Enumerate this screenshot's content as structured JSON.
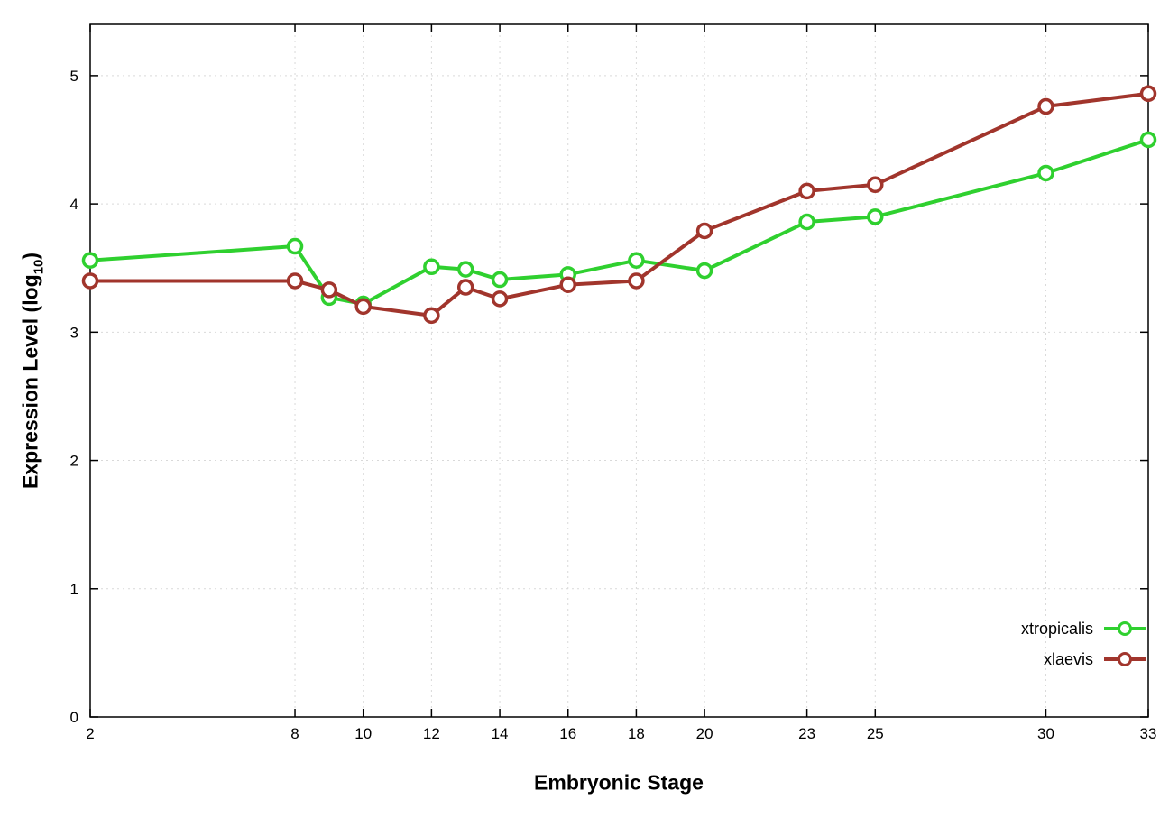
{
  "labels": {
    "x": "Embryonic Stage",
    "y_prefix": "Expression Level (log",
    "y_sub": "10",
    "y_suffix": ")"
  },
  "chart_data": {
    "type": "line",
    "title": "",
    "xlabel": "Embryonic Stage",
    "ylabel": "Expression Level (log10)",
    "xlim": [
      2,
      33
    ],
    "ylim": [
      0,
      5.4
    ],
    "x_ticks": [
      2,
      8,
      10,
      12,
      14,
      16,
      18,
      20,
      23,
      25,
      30,
      33
    ],
    "y_ticks": [
      0,
      1,
      2,
      3,
      4,
      5
    ],
    "grid": true,
    "legend_position": "inside-bottom-right",
    "series": [
      {
        "name": "xtropicalis",
        "color": "#2fd02f",
        "points": [
          [
            2,
            3.56
          ],
          [
            8,
            3.67
          ],
          [
            9,
            3.27
          ],
          [
            10,
            3.22
          ],
          [
            12,
            3.51
          ],
          [
            13,
            3.49
          ],
          [
            14,
            3.41
          ],
          [
            16,
            3.45
          ],
          [
            18,
            3.56
          ],
          [
            20,
            3.48
          ],
          [
            23,
            3.86
          ],
          [
            25,
            3.9
          ],
          [
            30,
            4.24
          ],
          [
            33,
            4.5
          ]
        ]
      },
      {
        "name": "xlaevis",
        "color": "#a1352c",
        "points": [
          [
            2,
            3.4
          ],
          [
            8,
            3.4
          ],
          [
            9,
            3.33
          ],
          [
            10,
            3.2
          ],
          [
            12,
            3.13
          ],
          [
            13,
            3.35
          ],
          [
            14,
            3.26
          ],
          [
            16,
            3.37
          ],
          [
            18,
            3.4
          ],
          [
            20,
            3.79
          ],
          [
            23,
            4.1
          ],
          [
            25,
            4.15
          ],
          [
            30,
            4.76
          ],
          [
            33,
            4.86
          ]
        ]
      }
    ]
  }
}
